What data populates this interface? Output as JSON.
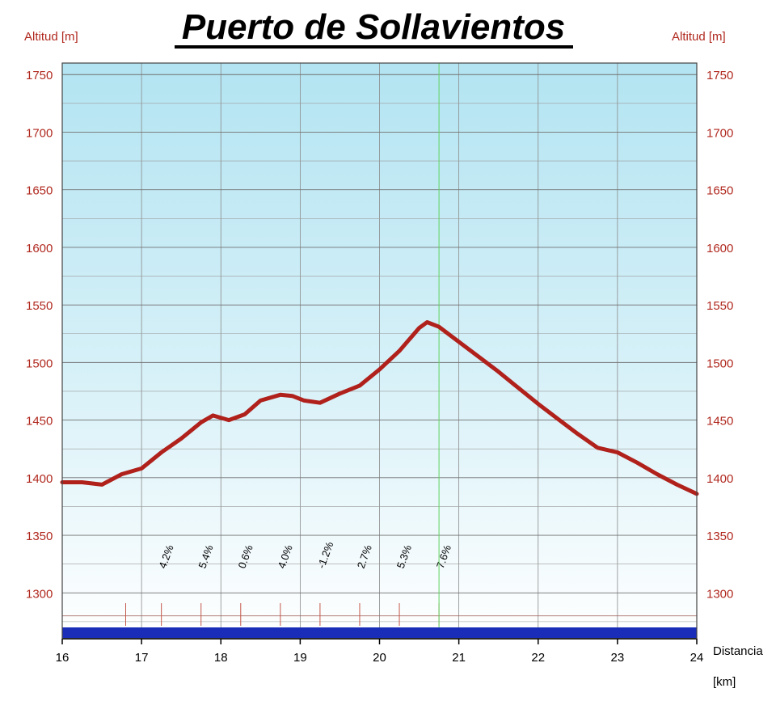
{
  "chart_data": {
    "type": "area",
    "title": "Puerto de Sollavientos",
    "ylabel_left": "Altitud [m]",
    "ylabel_right": "Altitud [m]",
    "xlabel": "Distancia",
    "xunit": "[km]",
    "xlim": [
      16,
      24
    ],
    "ylim": [
      1270,
      1760
    ],
    "x_ticks": [
      "16",
      "17",
      "18",
      "19",
      "20",
      "21",
      "22",
      "23",
      "24"
    ],
    "y_ticks": [
      "1300",
      "1350",
      "1400",
      "1450",
      "1500",
      "1550",
      "1600",
      "1650",
      "1700",
      "1750"
    ],
    "grid": true,
    "summit_km": 20.75,
    "series": [
      {
        "x": [
          16.0,
          16.25,
          16.5,
          16.75,
          17.0,
          17.25,
          17.5,
          17.75,
          17.9,
          18.1,
          18.3,
          18.5,
          18.75,
          18.9,
          19.05,
          19.25,
          19.5,
          19.75,
          20.0,
          20.25,
          20.5,
          20.6,
          20.75,
          21.0,
          21.25,
          21.5,
          21.75,
          22.0,
          22.25,
          22.5,
          22.75,
          23.0,
          23.25,
          23.5,
          23.75,
          24.0
        ],
        "y": [
          1396,
          1396,
          1394,
          1403,
          1408,
          1422,
          1434,
          1448,
          1454,
          1450,
          1455,
          1467,
          1472,
          1471,
          1467,
          1465,
          1473,
          1480,
          1494,
          1510,
          1530,
          1535,
          1531,
          1518,
          1505,
          1492,
          1478,
          1464,
          1451,
          1438,
          1426,
          1422,
          1413,
          1403,
          1394,
          1386
        ]
      }
    ],
    "gradient_labels": [
      "4.2%",
      "5.4%",
      "0.6%",
      "4.0%",
      "-1.2%",
      "2.7%",
      "5.3%",
      "7.6%"
    ],
    "gradient_positions_km": [
      17.25,
      17.75,
      18.25,
      18.75,
      19.25,
      19.75,
      20.25,
      20.75
    ],
    "colors": {
      "profile_line": "#b0211c",
      "sky_top": "#b3e4f2",
      "sky_bottom": "#ffffff",
      "axis_text": "#b0281e",
      "base_band": "#1a2db8",
      "summit_line": "#5fd35f"
    }
  }
}
